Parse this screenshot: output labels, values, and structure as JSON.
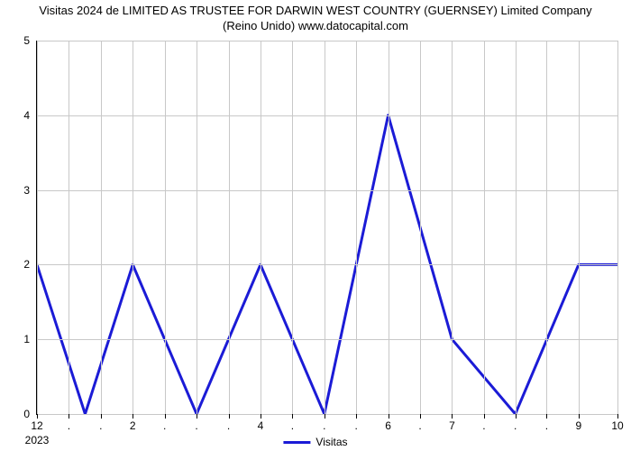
{
  "chart": {
    "type": "line",
    "title_line1": "Visitas 2024 de LIMITED AS TRUSTEE FOR DARWIN WEST COUNTRY (GUERNSEY) Limited Company",
    "title_line2": "(Reino Unido) www.datocapital.com",
    "title_fontsize": 13,
    "line_color": "#1b1bd6",
    "line_width": 3,
    "grid_color": "#c8c8c8",
    "background_color": "#ffffff",
    "ylim": [
      0,
      5
    ],
    "y_ticks": [
      0,
      1,
      2,
      3,
      4,
      5
    ],
    "x_ticks": [
      {
        "pos": 0.0,
        "label": "12"
      },
      {
        "pos": 0.055,
        "label": "."
      },
      {
        "pos": 0.11,
        "label": "."
      },
      {
        "pos": 0.165,
        "label": "2"
      },
      {
        "pos": 0.22,
        "label": "."
      },
      {
        "pos": 0.275,
        "label": "."
      },
      {
        "pos": 0.33,
        "label": "."
      },
      {
        "pos": 0.385,
        "label": "4"
      },
      {
        "pos": 0.44,
        "label": "."
      },
      {
        "pos": 0.495,
        "label": "."
      },
      {
        "pos": 0.55,
        "label": "."
      },
      {
        "pos": 0.605,
        "label": "6"
      },
      {
        "pos": 0.66,
        "label": "."
      },
      {
        "pos": 0.715,
        "label": "7"
      },
      {
        "pos": 0.77,
        "label": "."
      },
      {
        "pos": 0.824,
        "label": "."
      },
      {
        "pos": 0.878,
        "label": "."
      },
      {
        "pos": 0.933,
        "label": "9"
      },
      {
        "pos": 1.0,
        "label": "10"
      }
    ],
    "x_sublabel": "2023",
    "data_points": [
      {
        "x": 0.0,
        "y": 2
      },
      {
        "x": 0.083,
        "y": 0
      },
      {
        "x": 0.165,
        "y": 2
      },
      {
        "x": 0.275,
        "y": 0
      },
      {
        "x": 0.385,
        "y": 2
      },
      {
        "x": 0.495,
        "y": 0
      },
      {
        "x": 0.605,
        "y": 4
      },
      {
        "x": 0.715,
        "y": 1
      },
      {
        "x": 0.824,
        "y": 0
      },
      {
        "x": 0.933,
        "y": 2
      },
      {
        "x": 1.0,
        "y": 2
      }
    ],
    "legend": {
      "label": "Visitas",
      "color": "#1b1bd6"
    }
  }
}
